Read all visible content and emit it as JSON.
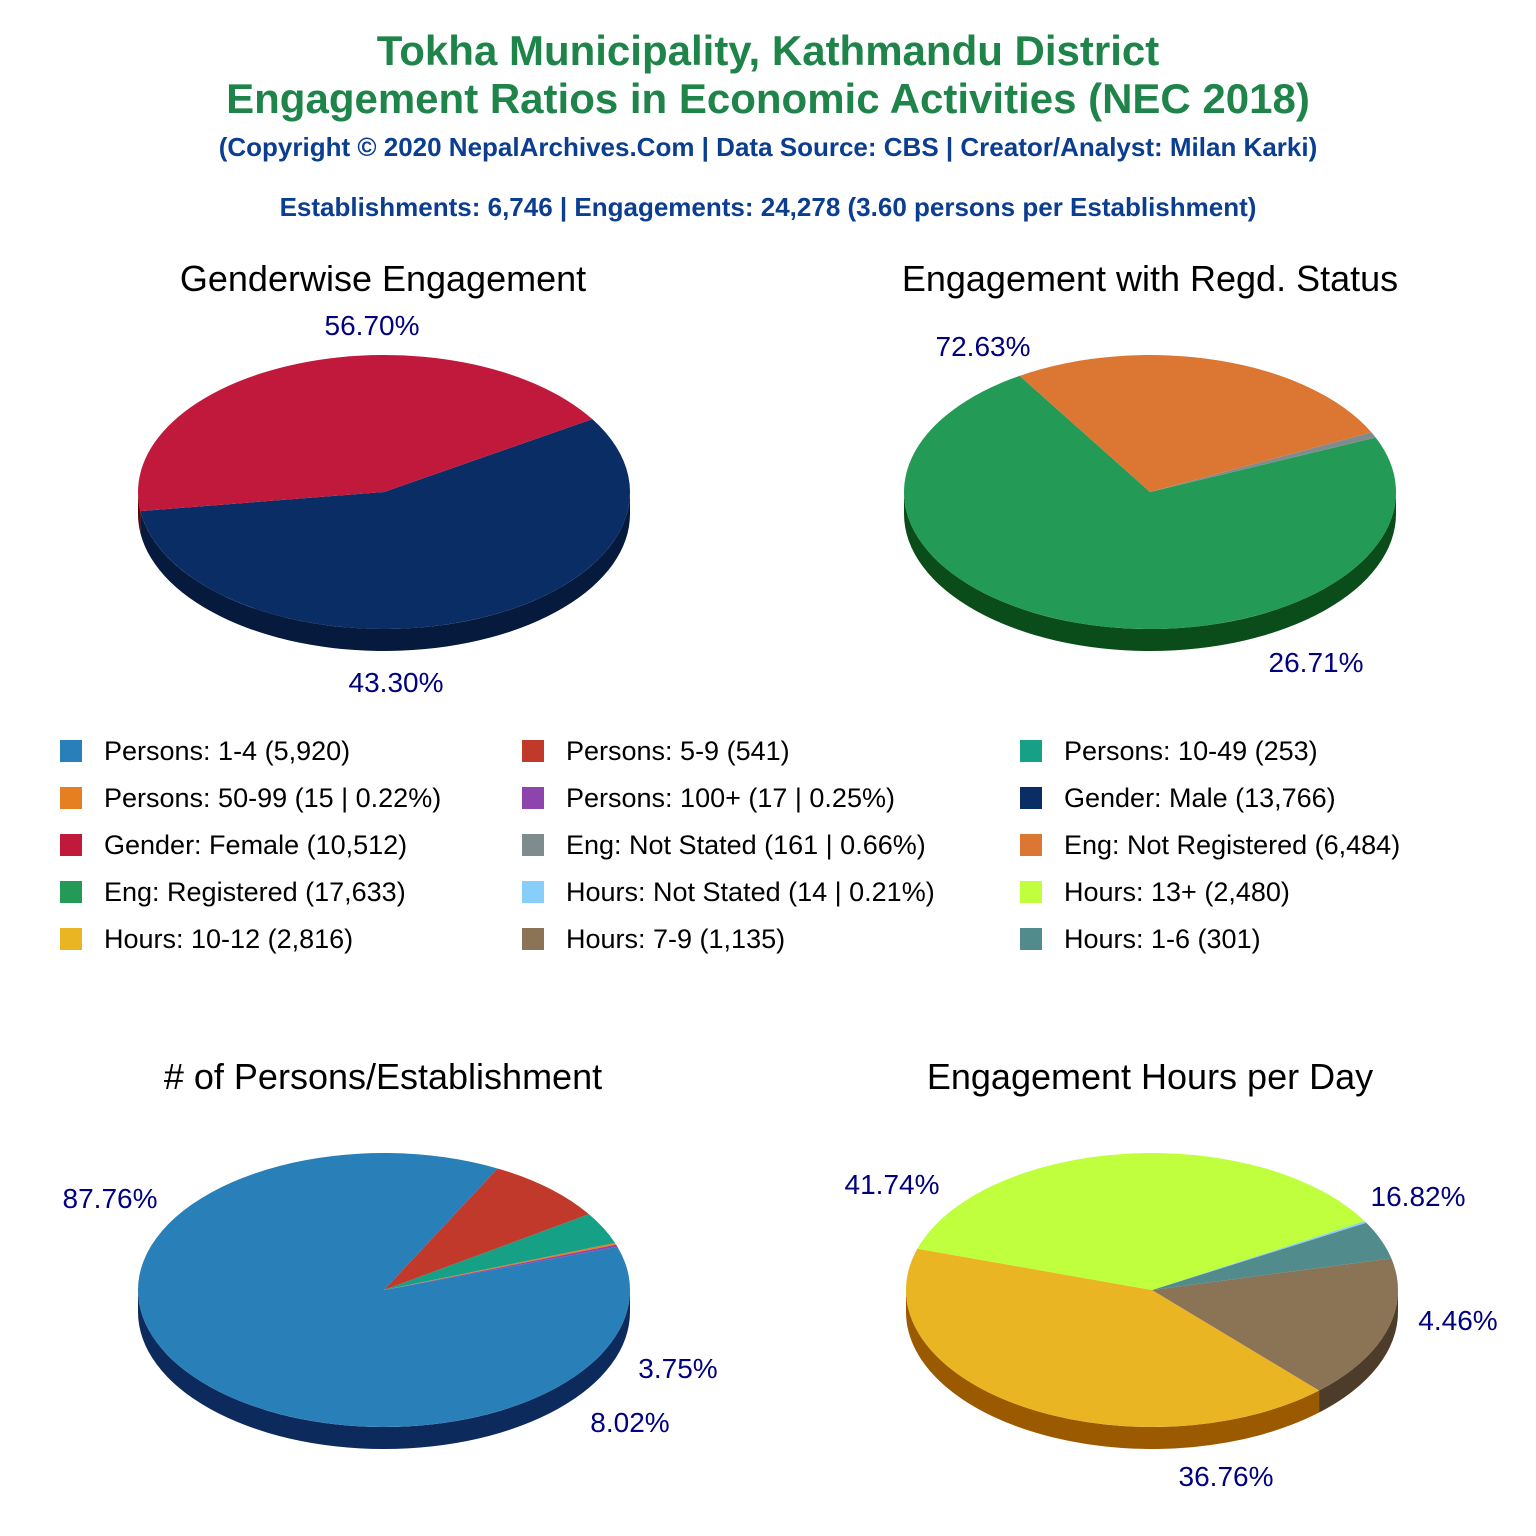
{
  "header": {
    "title_line1": "Tokha Municipality, Kathmandu District",
    "title_line2": "Engagement Ratios in Economic Activities (NEC 2018)",
    "copyright": "(Copyright © 2020 NepalArchives.Com | Data Source: CBS | Creator/Analyst: Milan Karki)",
    "summary": "Establishments: 6,746 | Engagements: 24,278 (3.60 persons per Establishment)"
  },
  "chart_data": [
    {
      "type": "pie",
      "title": "Genderwise Engagement",
      "slices": [
        {
          "name": "Gender: Male",
          "value": 13766,
          "percent_label": "56.70%",
          "color": "#0b2d66",
          "side": "#061a3d"
        },
        {
          "name": "Gender: Female",
          "value": 10512,
          "percent_label": "43.30%",
          "color": "#c0193b",
          "side": "#660000"
        }
      ]
    },
    {
      "type": "pie",
      "title": "Engagement with Regd. Status",
      "slices": [
        {
          "name": "Eng: Registered",
          "value": 17633,
          "percent_label": "72.63%",
          "color": "#239b56",
          "side": "#0a4d1a"
        },
        {
          "name": "Eng: Not Stated",
          "value": 161,
          "percent_label": "",
          "color": "#7f8c8d",
          "side": "#4d5656"
        },
        {
          "name": "Eng: Not Registered",
          "value": 6484,
          "percent_label": "26.71%",
          "color": "#dc7633",
          "side": "#7b1f00"
        }
      ]
    },
    {
      "type": "pie",
      "title": "# of Persons/Establishment",
      "slices": [
        {
          "name": "Persons: 1-4",
          "value": 5920,
          "percent_label": "87.76%",
          "color": "#2980b9",
          "side": "#0d2a5c"
        },
        {
          "name": "Persons: 100+",
          "value": 17,
          "percent_label": "",
          "color": "#8e44ad",
          "side": "#4a235a"
        },
        {
          "name": "Persons: 50-99",
          "value": 15,
          "percent_label": "",
          "color": "#e67e22",
          "side": "#7b3f00"
        },
        {
          "name": "Persons: 10-49",
          "value": 253,
          "percent_label": "3.75%",
          "color": "#16a085",
          "side": "#0b5345"
        },
        {
          "name": "Persons: 5-9",
          "value": 541,
          "percent_label": "8.02%",
          "color": "#c0392b",
          "side": "#660000"
        }
      ]
    },
    {
      "type": "pie",
      "title": "Engagement Hours per Day",
      "slices": [
        {
          "name": "Hours: 10-12",
          "value": 2816,
          "percent_label": "41.74%",
          "color": "#eab522",
          "side": "#9c5a00"
        },
        {
          "name": "Hours: 7-9",
          "value": 1135,
          "percent_label": "16.82%",
          "color": "#8b7355",
          "side": "#4d3c29"
        },
        {
          "name": "Hours: 1-6",
          "value": 301,
          "percent_label": "4.46%",
          "color": "#528b8b",
          "side": "#2d4f4f"
        },
        {
          "name": "Hours: Not Stated",
          "value": 14,
          "percent_label": "",
          "color": "#87cefa",
          "side": "#4682b4"
        },
        {
          "name": "Hours: 13+",
          "value": 2480,
          "percent_label": "36.76%",
          "color": "#c0ff3e",
          "side": "#66a000"
        }
      ]
    }
  ],
  "legend": [
    {
      "label": "Persons: 1-4 (5,920)",
      "color": "#2980b9"
    },
    {
      "label": "Persons: 5-9 (541)",
      "color": "#c0392b"
    },
    {
      "label": "Persons: 10-49 (253)",
      "color": "#16a085"
    },
    {
      "label": "Persons: 50-99 (15 | 0.22%)",
      "color": "#e67e22"
    },
    {
      "label": "Persons: 100+ (17 | 0.25%)",
      "color": "#8e44ad"
    },
    {
      "label": "Gender: Male (13,766)",
      "color": "#0b2d66"
    },
    {
      "label": "Gender: Female (10,512)",
      "color": "#c0193b"
    },
    {
      "label": "Eng: Not Stated (161 | 0.66%)",
      "color": "#7f8c8d"
    },
    {
      "label": "Eng: Not Registered (6,484)",
      "color": "#dc7633"
    },
    {
      "label": "Eng: Registered (17,633)",
      "color": "#239b56"
    },
    {
      "label": "Hours: Not Stated (14 | 0.21%)",
      "color": "#87cefa"
    },
    {
      "label": "Hours: 13+ (2,480)",
      "color": "#c0ff3e"
    },
    {
      "label": "Hours: 10-12 (2,816)",
      "color": "#eab522"
    },
    {
      "label": "Hours: 7-9 (1,135)",
      "color": "#8b7355"
    },
    {
      "label": "Hours: 1-6 (301)",
      "color": "#528b8b"
    }
  ]
}
